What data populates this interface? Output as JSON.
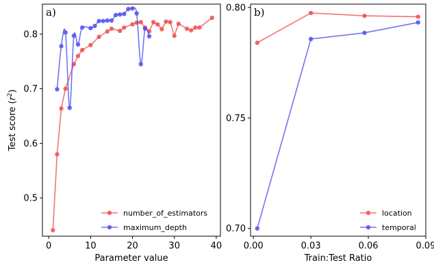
{
  "chart_data": [
    {
      "type": "line",
      "panel_label": "a)",
      "xlabel": "Parameter value",
      "ylabel": "Test score (r²)",
      "xlim": [
        -1.5,
        41
      ],
      "ylim": [
        0.43,
        0.855
      ],
      "xticks": [
        0,
        10,
        20,
        30,
        40
      ],
      "xtick_labels": [
        "0",
        "10",
        "20",
        "30",
        "40"
      ],
      "yticks": [
        0.5,
        0.6,
        0.7,
        0.8
      ],
      "ytick_labels": [
        "0.5",
        "0.6",
        "0.7",
        "0.8"
      ],
      "grid": false,
      "legend_position": "lower-right",
      "series": [
        {
          "name": "number_of_estimators",
          "color": "#f05050",
          "x": [
            1,
            2,
            3,
            4,
            6,
            7,
            8,
            10,
            12,
            14,
            15,
            17,
            18,
            20,
            21,
            22,
            23,
            24,
            25,
            26,
            27,
            28,
            29,
            30,
            31,
            33,
            34,
            35,
            36,
            39
          ],
          "y": [
            0.441,
            0.58,
            0.664,
            0.7,
            0.745,
            0.76,
            0.771,
            0.78,
            0.795,
            0.805,
            0.81,
            0.806,
            0.812,
            0.818,
            0.821,
            0.822,
            0.812,
            0.805,
            0.822,
            0.818,
            0.809,
            0.823,
            0.822,
            0.797,
            0.819,
            0.81,
            0.807,
            0.812,
            0.812,
            0.83
          ]
        },
        {
          "name": "maximum_depth",
          "color": "#5050f0",
          "x": [
            2,
            3,
            4,
            5,
            6,
            7,
            8,
            10,
            11,
            12,
            13,
            14,
            15,
            16,
            17,
            18,
            19,
            20,
            21,
            22,
            23,
            24
          ],
          "y": [
            0.699,
            0.778,
            0.803,
            0.665,
            0.797,
            0.781,
            0.812,
            0.811,
            0.815,
            0.824,
            0.824,
            0.825,
            0.825,
            0.835,
            0.836,
            0.837,
            0.846,
            0.847,
            0.838,
            0.745,
            0.81,
            0.796
          ]
        }
      ]
    },
    {
      "type": "line",
      "panel_label": "b)",
      "xlabel": "Train:Test Ratio",
      "ylabel": "",
      "xlim": [
        -0.0015,
        0.09
      ],
      "ylim": [
        0.6965,
        0.8015
      ],
      "xticks": [
        0.0,
        0.03,
        0.06,
        0.09
      ],
      "xtick_labels": [
        "0.00",
        "0.03",
        "0.06",
        "0.09"
      ],
      "yticks": [
        0.7,
        0.75,
        0.8
      ],
      "ytick_labels": [
        "0.70",
        "0.75",
        "0.80"
      ],
      "grid": false,
      "legend_position": "lower-right",
      "series": [
        {
          "name": "location",
          "color": "#f05050",
          "x": [
            0.002,
            0.03,
            0.058,
            0.086
          ],
          "y": [
            0.784,
            0.7975,
            0.7962,
            0.7958
          ]
        },
        {
          "name": "temporal",
          "color": "#5050f0",
          "x": [
            0.002,
            0.03,
            0.058,
            0.086
          ],
          "y": [
            0.7,
            0.7857,
            0.7885,
            0.7932
          ]
        }
      ]
    }
  ]
}
